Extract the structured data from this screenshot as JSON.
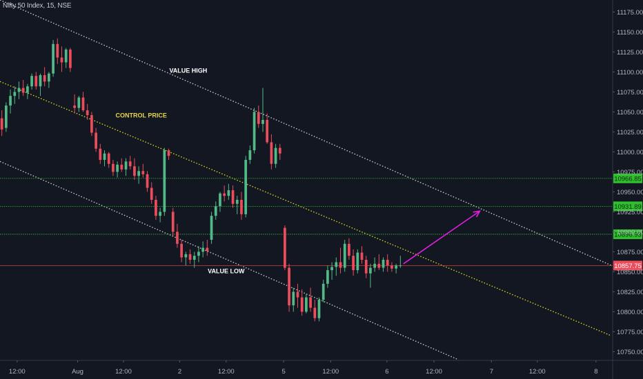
{
  "header": {
    "title": "Nifty 50 Index, 15, NSE"
  },
  "colors": {
    "background": "#131722",
    "bull": "#53b987",
    "bear": "#eb4d5c",
    "axis_text": "#b2b5be",
    "value_high_line": "#c8c8c8",
    "control_line": "#d4d422",
    "value_low_line": "#c8c8c8",
    "level_line": "#2fbf2f",
    "price_line": "#b43c3c",
    "arrow": "#e020e0",
    "annotation_white": "#ffffff",
    "annotation_yellow": "#e6d74a"
  },
  "chart_data": {
    "type": "candlestick",
    "title": "Nifty 50 Index, 15, NSE",
    "ylim": [
      10740,
      11190
    ],
    "xlim": [
      0,
      100
    ],
    "y_ticks": [
      "11175.00",
      "11150.00",
      "11125.00",
      "11100.00",
      "11075.00",
      "11050.00",
      "11025.00",
      "11000.00",
      "10975.00",
      "10950.00",
      "10925.00",
      "10900.00",
      "10875.00",
      "10850.00",
      "10825.00",
      "10800.00",
      "10775.00",
      "10750.00"
    ],
    "x_ticks": [
      {
        "label": "12:00",
        "x": 2.8
      },
      {
        "label": "Aug",
        "x": 12.7
      },
      {
        "label": "12:00",
        "x": 20.2
      },
      {
        "label": "2",
        "x": 29.4
      },
      {
        "label": "12:00",
        "x": 37.0
      },
      {
        "label": "5",
        "x": 46.4
      },
      {
        "label": "12:00",
        "x": 54.1
      },
      {
        "label": "6",
        "x": 63.3
      },
      {
        "label": "12:00",
        "x": 71.0
      },
      {
        "label": "7",
        "x": 80.4
      },
      {
        "label": "12:00",
        "x": 87.9
      },
      {
        "label": "8",
        "x": 97.5
      }
    ],
    "candles": [
      [
        0.3,
        11042,
        11052,
        11020,
        11028
      ],
      [
        1.0,
        11030,
        11062,
        11025,
        11058
      ],
      [
        1.7,
        11058,
        11078,
        11048,
        11070
      ],
      [
        2.4,
        11070,
        11082,
        11060,
        11075
      ],
      [
        3.1,
        11075,
        11088,
        11066,
        11080
      ],
      [
        3.8,
        11080,
        11090,
        11070,
        11074
      ],
      [
        4.5,
        11074,
        11085,
        11066,
        11082
      ],
      [
        5.2,
        11082,
        11098,
        11078,
        11095
      ],
      [
        5.9,
        11095,
        11100,
        11078,
        11082
      ],
      [
        6.6,
        11082,
        11098,
        11070,
        11096
      ],
      [
        7.3,
        11096,
        11106,
        11082,
        11088
      ],
      [
        8.0,
        11088,
        11100,
        11080,
        11098
      ],
      [
        8.7,
        11098,
        11140,
        11094,
        11135
      ],
      [
        9.4,
        11135,
        11142,
        11110,
        11118
      ],
      [
        10.1,
        11118,
        11132,
        11100,
        11112
      ],
      [
        10.8,
        11112,
        11130,
        11105,
        11128
      ],
      [
        11.5,
        11128,
        11130,
        11100,
        11105
      ],
      [
        12.2,
        11058,
        11072,
        11048,
        11055
      ],
      [
        12.9,
        11055,
        11070,
        11050,
        11068
      ],
      [
        13.6,
        11068,
        11075,
        11050,
        11052
      ],
      [
        14.3,
        11052,
        11060,
        11040,
        11046
      ],
      [
        15.0,
        11046,
        11050,
        11020,
        11024
      ],
      [
        15.7,
        11024,
        11030,
        11000,
        11004
      ],
      [
        16.4,
        11004,
        11010,
        10985,
        10990
      ],
      [
        17.1,
        10990,
        11002,
        10982,
        10998
      ],
      [
        17.8,
        10998,
        11000,
        10980,
        10985
      ],
      [
        18.5,
        10985,
        10990,
        10970,
        10975
      ],
      [
        19.2,
        10975,
        10988,
        10968,
        10984
      ],
      [
        19.9,
        10984,
        10992,
        10975,
        10978
      ],
      [
        20.6,
        10978,
        10992,
        10970,
        10988
      ],
      [
        21.3,
        10988,
        10995,
        10978,
        10982
      ],
      [
        22.0,
        10982,
        10992,
        10965,
        10970
      ],
      [
        22.7,
        10970,
        10982,
        10960,
        10976
      ],
      [
        23.4,
        10976,
        10985,
        10968,
        10972
      ],
      [
        24.1,
        10972,
        10976,
        10950,
        10955
      ],
      [
        24.8,
        10955,
        10962,
        10935,
        10940
      ],
      [
        25.5,
        10940,
        10945,
        10915,
        10920
      ],
      [
        26.2,
        10920,
        10930,
        10912,
        10925
      ],
      [
        26.9,
        10925,
        11005,
        10920,
        11002
      ],
      [
        27.6,
        11002,
        11004,
        10990,
        10995
      ],
      [
        28.3,
        10925,
        10930,
        10895,
        10900
      ],
      [
        29.0,
        10900,
        10910,
        10880,
        10885
      ],
      [
        29.7,
        10885,
        10890,
        10862,
        10868
      ],
      [
        30.4,
        10868,
        10875,
        10858,
        10872
      ],
      [
        31.1,
        10872,
        10878,
        10860,
        10865
      ],
      [
        31.8,
        10865,
        10875,
        10855,
        10870
      ],
      [
        32.5,
        10870,
        10882,
        10862,
        10875
      ],
      [
        33.2,
        10875,
        10888,
        10868,
        10880
      ],
      [
        33.9,
        10880,
        10890,
        10870,
        10876
      ],
      [
        34.6,
        10890,
        10925,
        10885,
        10920
      ],
      [
        35.3,
        10920,
        10938,
        10915,
        10932
      ],
      [
        36.0,
        10932,
        10950,
        10925,
        10948
      ],
      [
        36.7,
        10948,
        10958,
        10938,
        10945
      ],
      [
        37.4,
        10945,
        10960,
        10940,
        10952
      ],
      [
        38.1,
        10952,
        10958,
        10930,
        10935
      ],
      [
        38.8,
        10935,
        10945,
        10922,
        10940
      ],
      [
        39.5,
        10940,
        10950,
        10915,
        10922
      ],
      [
        40.2,
        10922,
        10995,
        10918,
        10990
      ],
      [
        40.9,
        10990,
        11008,
        10985,
        11002
      ],
      [
        41.6,
        11002,
        11055,
        10998,
        11050
      ],
      [
        42.3,
        11050,
        11058,
        11030,
        11035
      ],
      [
        43.0,
        11035,
        11080,
        11025,
        11040
      ],
      [
        43.7,
        11040,
        11048,
        11010,
        11012
      ],
      [
        44.4,
        11012,
        11022,
        10978,
        10985
      ],
      [
        45.1,
        10985,
        11010,
        10980,
        11005
      ],
      [
        45.8,
        11005,
        11010,
        10990,
        10998
      ],
      [
        46.6,
        10905,
        10908,
        10852,
        10855
      ],
      [
        47.3,
        10855,
        10860,
        10800,
        10808
      ],
      [
        48.0,
        10808,
        10830,
        10800,
        10825
      ],
      [
        48.7,
        10825,
        10835,
        10805,
        10818
      ],
      [
        49.4,
        10818,
        10828,
        10795,
        10800
      ],
      [
        50.1,
        10800,
        10822,
        10798,
        10818
      ],
      [
        50.8,
        10818,
        10830,
        10800,
        10805
      ],
      [
        51.5,
        10805,
        10815,
        10788,
        10792
      ],
      [
        52.2,
        10792,
        10818,
        10788,
        10815
      ],
      [
        52.9,
        10815,
        10840,
        10812,
        10835
      ],
      [
        53.6,
        10835,
        10858,
        10830,
        10852
      ],
      [
        54.3,
        10852,
        10862,
        10840,
        10856
      ],
      [
        55.0,
        10856,
        10868,
        10845,
        10862
      ],
      [
        55.7,
        10862,
        10880,
        10848,
        10855
      ],
      [
        56.4,
        10855,
        10890,
        10850,
        10885
      ],
      [
        57.1,
        10885,
        10892,
        10865,
        10870
      ],
      [
        57.8,
        10870,
        10878,
        10845,
        10852
      ],
      [
        58.5,
        10852,
        10878,
        10848,
        10874
      ],
      [
        59.2,
        10874,
        10882,
        10860,
        10865
      ],
      [
        59.9,
        10865,
        10870,
        10842,
        10848
      ],
      [
        60.6,
        10848,
        10860,
        10830,
        10855
      ],
      [
        61.3,
        10855,
        10868,
        10850,
        10860
      ],
      [
        62.0,
        10860,
        10872,
        10852,
        10855
      ],
      [
        62.7,
        10855,
        10868,
        10850,
        10865
      ],
      [
        63.4,
        10865,
        10872,
        10850,
        10858
      ],
      [
        64.1,
        10858,
        10862,
        10850,
        10854
      ],
      [
        64.8,
        10854,
        10860,
        10848,
        10858
      ],
      [
        65.5,
        10858,
        10870,
        10855,
        10858
      ]
    ],
    "annotations": [
      {
        "text": "VALUE HIGH",
        "x": 30.8,
        "y": 11099
      },
      {
        "text": "CONTROL PRICE",
        "x": 23.1,
        "y": 11043
      },
      {
        "text": "VALUE LOW",
        "x": 37.0,
        "y": 10848
      }
    ],
    "trendlines": [
      {
        "name": "value-high",
        "x1": 0,
        "y1": 11190,
        "x2": 100,
        "y2": 10858
      },
      {
        "name": "control-price",
        "x1": 0,
        "y1": 11088,
        "x2": 100,
        "y2": 10770
      },
      {
        "name": "value-low",
        "x1": 0,
        "y1": 10988,
        "x2": 75,
        "y2": 10740
      }
    ],
    "levels": [
      {
        "label": "10966.85",
        "y": 10966.85
      },
      {
        "label": "10931.89",
        "y": 10931.89
      },
      {
        "label": "10896.93",
        "y": 10896.93
      }
    ],
    "last_price": {
      "label": "10857.75",
      "y": 10857.75
    },
    "arrow": {
      "x1": 66,
      "y1": 10860,
      "x2": 78.5,
      "y2": 10926
    }
  }
}
